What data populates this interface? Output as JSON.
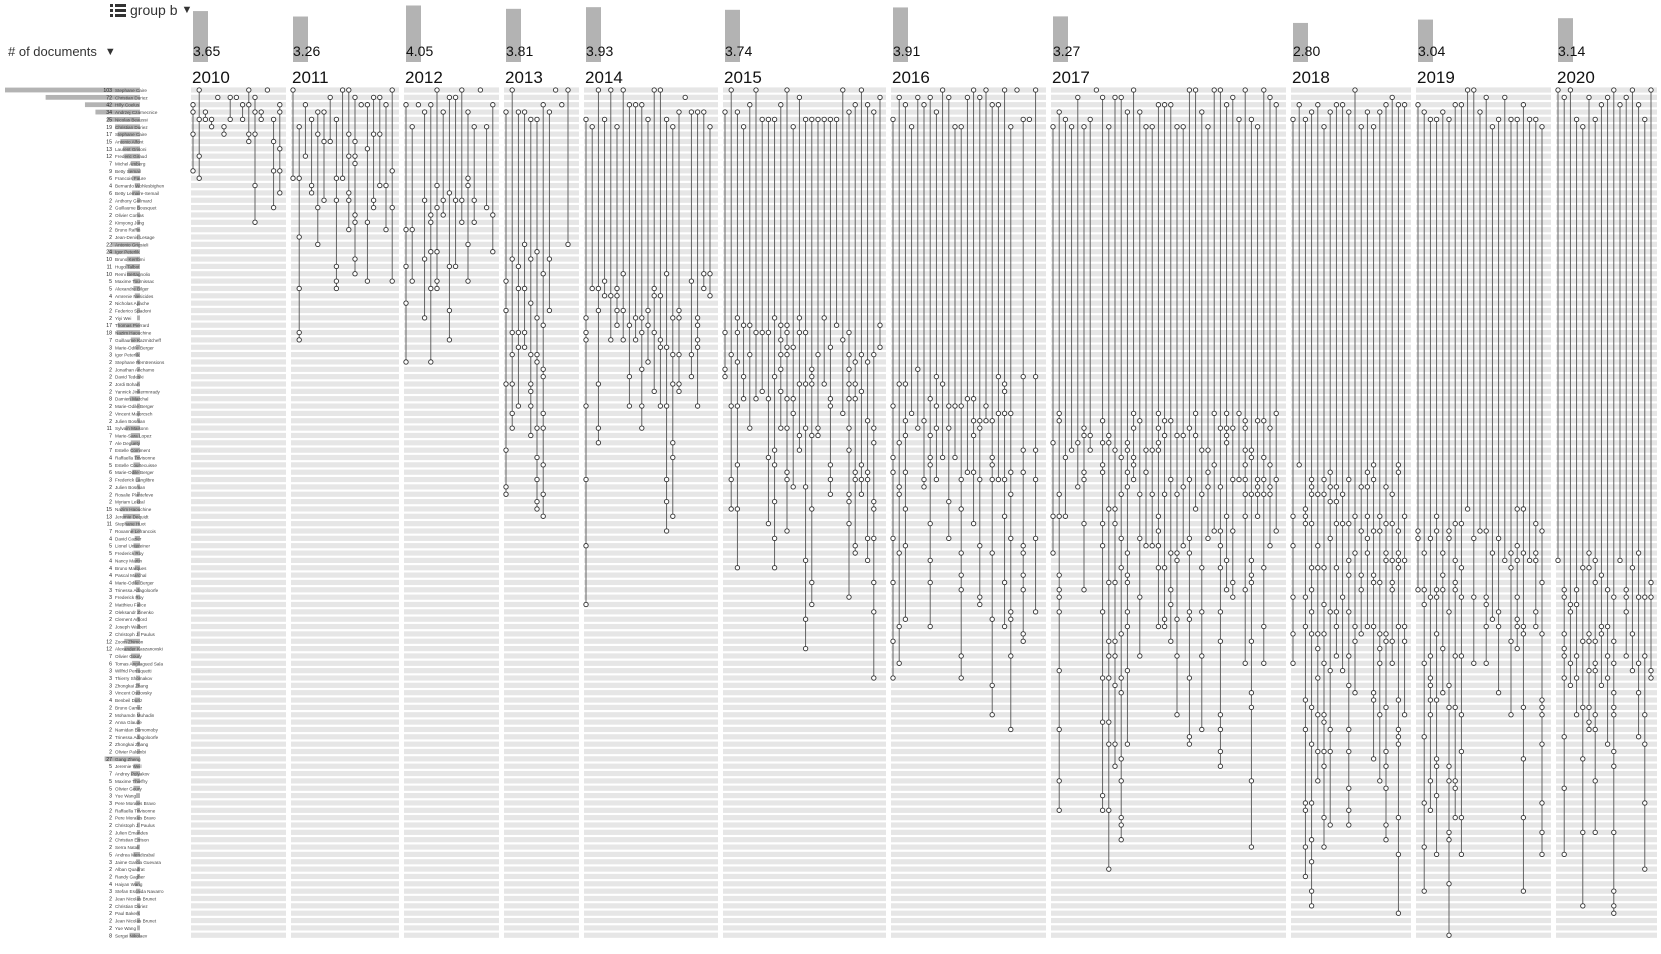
{
  "controls": {
    "group_label": "group b",
    "sort_label": "# of documents",
    "list_icon": "list-icon",
    "chevron_icon": "chevron-down-icon"
  },
  "colors": {
    "stripe": "#e6e6e6",
    "bar": "#b3b3b3",
    "node": "#333333",
    "node_faded": "#999999"
  },
  "chart_data": {
    "type": "timeline-matrix",
    "title": "",
    "years": [
      "2010",
      "2011",
      "2012",
      "2013",
      "2014",
      "2015",
      "2016",
      "2017",
      "2018",
      "2019",
      "2020"
    ],
    "year_values": [
      3.65,
      3.26,
      4.05,
      3.81,
      3.93,
      3.74,
      3.91,
      3.27,
      2.8,
      3.04,
      3.14
    ],
    "year_value_labels": [
      "3.65",
      "3.26",
      "4.05",
      "3.81",
      "3.93",
      "3.74",
      "3.91",
      "3.27",
      "2.80",
      "3.04",
      "3.14"
    ],
    "authors": [
      {
        "name": "Stephane Caire",
        "count": 103
      },
      {
        "name": "Christian Duriez",
        "count": 72
      },
      {
        "name": "Hilly Coelus",
        "count": 42
      },
      {
        "name": "Andrzej Czarnecnice",
        "count": 34
      },
      {
        "name": "Nicolas Beaussi",
        "count": 25
      },
      {
        "name": "Christian Duriez",
        "count": 19
      },
      {
        "name": "Stephane Caire",
        "count": 17
      },
      {
        "name": "Antonio Alfont",
        "count": 15
      },
      {
        "name": "Laurent Grisoni",
        "count": 13
      },
      {
        "name": "Frederic Giraud",
        "count": 12
      },
      {
        "name": "Michel Amberg",
        "count": 7
      },
      {
        "name": "Betty Semail",
        "count": 9
      },
      {
        "name": "Francois Faure",
        "count": 6
      },
      {
        "name": "Bernardo Wohlesbighen",
        "count": 4
      },
      {
        "name": "Betty Lemaire-Semail",
        "count": 6
      },
      {
        "name": "Anthony Guilmard",
        "count": 2
      },
      {
        "name": "Guillaume Bousquet",
        "count": 2
      },
      {
        "name": "Olivier Comas",
        "count": 2
      },
      {
        "name": "Kimyong Jung",
        "count": 2
      },
      {
        "name": "Bruno Raffin",
        "count": 2
      },
      {
        "name": "Jean-Denis Lesage",
        "count": 2
      },
      {
        "name": "Antonio Grigsieli",
        "count": 22
      },
      {
        "name": "Igor Peterlik",
        "count": 24
      },
      {
        "name": "Bruno Kerrbmi",
        "count": 10
      },
      {
        "name": "Hugo Talbot",
        "count": 11
      },
      {
        "name": "Remi Bertagnolio",
        "count": 10
      },
      {
        "name": "Maxime Tournissac",
        "count": 5
      },
      {
        "name": "Alexandre Bilger",
        "count": 5
      },
      {
        "name": "Amrenie Nesicides",
        "count": 4
      },
      {
        "name": "Nicholas Apache",
        "count": 2
      },
      {
        "name": "Federico Spadoni",
        "count": 2
      },
      {
        "name": "Yiyi Wei",
        "count": 2
      },
      {
        "name": "Thomas Pierrard",
        "count": 17
      },
      {
        "name": "Nazim Haouchine",
        "count": 18
      },
      {
        "name": "Guillaume Kazmitcheff",
        "count": 7
      },
      {
        "name": "Marie-Odile Berger",
        "count": 3
      },
      {
        "name": "Igor Peterlik",
        "count": 3
      },
      {
        "name": "Stephane Remtrensions",
        "count": 2
      },
      {
        "name": "Jonathan Anchamo",
        "count": 2
      },
      {
        "name": "David Tedeski",
        "count": 2
      },
      {
        "name": "Jordi Bohan",
        "count": 2
      },
      {
        "name": "Yannick Jinkermnrady",
        "count": 2
      },
      {
        "name": "Damien Marchal",
        "count": 8
      },
      {
        "name": "Marie-Odile Berger",
        "count": 2
      },
      {
        "name": "Vincent Majorcsch",
        "count": 2
      },
      {
        "name": "Julien Bosman",
        "count": 2
      },
      {
        "name": "Sylvain Maisonn",
        "count": 11
      },
      {
        "name": "Marie-Sara Lopez",
        "count": 7
      },
      {
        "name": "Ale Deguety",
        "count": 7
      },
      {
        "name": "Estelle Comment",
        "count": 7
      },
      {
        "name": "Raffaella Trivisonne",
        "count": 4
      },
      {
        "name": "Estelle Courtecuisse",
        "count": 5
      },
      {
        "name": "Marie-Odile Berger",
        "count": 6
      },
      {
        "name": "Frederick Langlibre",
        "count": 3
      },
      {
        "name": "Julien Bosman",
        "count": 2
      },
      {
        "name": "Rosalie Plantefeve",
        "count": 2
      },
      {
        "name": "Myriam Lekkal",
        "count": 2
      },
      {
        "name": "Nazim Haouchine",
        "count": 15
      },
      {
        "name": "Jeremie Dequidt",
        "count": 13
      },
      {
        "name": "Stephane Huot",
        "count": 11
      },
      {
        "name": "Roxanne Lefrancois",
        "count": 7
      },
      {
        "name": "David Cazier",
        "count": 4
      },
      {
        "name": "Lionel Untereiner",
        "count": 5
      },
      {
        "name": "Frederick Roy",
        "count": 5
      },
      {
        "name": "Nancy Martin",
        "count": 4
      },
      {
        "name": "Bruno Marques",
        "count": 4
      },
      {
        "name": "Pascal Marchal",
        "count": 4
      },
      {
        "name": "Marie-Odile Berger",
        "count": 4
      },
      {
        "name": "Trinessa Adagoloorfe",
        "count": 3
      },
      {
        "name": "Frederick Roy",
        "count": 3
      },
      {
        "name": "Matthieu Falice",
        "count": 2
      },
      {
        "name": "Oleksandr Zinenko",
        "count": 2
      },
      {
        "name": "Clement Arbord",
        "count": 2
      },
      {
        "name": "Joseph Walbert",
        "count": 2
      },
      {
        "name": "Christoph J. Paulus",
        "count": 2
      },
      {
        "name": "Zoom Zhimon",
        "count": 12
      },
      {
        "name": "Alexander Kaszanovski",
        "count": 12
      },
      {
        "name": "Olivier Goury",
        "count": 7
      },
      {
        "name": "Tomas Angilagued Sala",
        "count": 6
      },
      {
        "name": "Wilfrid Perruquetti",
        "count": 3
      },
      {
        "name": "Thierry Shomakov",
        "count": 3
      },
      {
        "name": "Zhongkai Zhang",
        "count": 3
      },
      {
        "name": "Vincent Ostrovsky",
        "count": 3
      },
      {
        "name": "Benbeil Duriz",
        "count": 4
      },
      {
        "name": "Bruno Carrez",
        "count": 2
      },
      {
        "name": "Mohamdn Muhadin",
        "count": 2
      },
      {
        "name": "Anna Glaude",
        "count": 2
      },
      {
        "name": "Namidan Bomomoby",
        "count": 2
      },
      {
        "name": "Trinessa Adagoloorfe",
        "count": 2
      },
      {
        "name": "Zhongkai Zhang",
        "count": 2
      },
      {
        "name": "Olivier Palombi",
        "count": 2
      },
      {
        "name": "Gang Zheng",
        "count": 27
      },
      {
        "name": "Jeremie Weil",
        "count": 5
      },
      {
        "name": "Andrey Polyakov",
        "count": 7
      },
      {
        "name": "Maxime Thieffry",
        "count": 5
      },
      {
        "name": "Olivier Goury",
        "count": 5
      },
      {
        "name": "Yue Wang",
        "count": 3
      },
      {
        "name": "Pere Morales Bravo",
        "count": 3
      },
      {
        "name": "Raffaella Trivisonne",
        "count": 2
      },
      {
        "name": "Pere Morales Bravo",
        "count": 2
      },
      {
        "name": "Christoph J. Paulus",
        "count": 2
      },
      {
        "name": "Julien Ernandes",
        "count": 2
      },
      {
        "name": "Christian Errison",
        "count": 2
      },
      {
        "name": "Serra Natali",
        "count": 2
      },
      {
        "name": "Andrea Mendizabal",
        "count": 5
      },
      {
        "name": "Jaime Garcia Guevara",
        "count": 3
      },
      {
        "name": "Alban Quadrat",
        "count": 2
      },
      {
        "name": "Randy Gagher",
        "count": 2
      },
      {
        "name": "Haiyan Wang",
        "count": 4
      },
      {
        "name": "Stefan Escaida Navarro",
        "count": 3
      },
      {
        "name": "Jean Nicolas Brunet",
        "count": 2
      },
      {
        "name": "Christian Duriez",
        "count": 2
      },
      {
        "name": "Paul Bakers",
        "count": 2
      },
      {
        "name": "Jean Nicolas Brunet",
        "count": 2
      },
      {
        "name": "Yue Wang",
        "count": 2
      },
      {
        "name": "Sergei Nikolaev",
        "count": 8
      }
    ]
  }
}
